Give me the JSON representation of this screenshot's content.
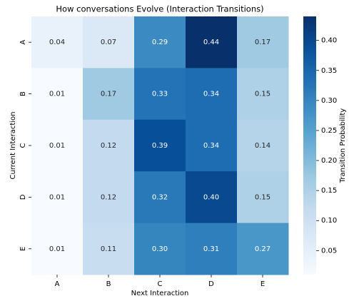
{
  "chart_data": {
    "type": "heatmap",
    "title": "How conversations Evolve (Interaction Transitions)",
    "xlabel": "Next Interaction",
    "ylabel": "Current Interaction",
    "colorbar_label": "Transition Probability",
    "x_categories": [
      "A",
      "B",
      "C",
      "D",
      "E"
    ],
    "y_categories": [
      "A",
      "B",
      "C",
      "D",
      "E"
    ],
    "values": [
      [
        0.04,
        0.07,
        0.29,
        0.44,
        0.17
      ],
      [
        0.01,
        0.17,
        0.33,
        0.34,
        0.15
      ],
      [
        0.01,
        0.12,
        0.39,
        0.34,
        0.14
      ],
      [
        0.01,
        0.12,
        0.32,
        0.4,
        0.15
      ],
      [
        0.01,
        0.11,
        0.3,
        0.31,
        0.27
      ]
    ],
    "value_labels": [
      [
        "0.04",
        "0.07",
        "0.29",
        "0.44",
        "0.17"
      ],
      [
        "0.01",
        "0.17",
        "0.33",
        "0.34",
        "0.15"
      ],
      [
        "0.01",
        "0.12",
        "0.39",
        "0.34",
        "0.14"
      ],
      [
        "0.01",
        "0.12",
        "0.32",
        "0.40",
        "0.15"
      ],
      [
        "0.01",
        "0.11",
        "0.30",
        "0.31",
        "0.27"
      ]
    ],
    "clim": [
      0.01,
      0.44
    ],
    "cticks": [
      {
        "value": 0.05,
        "label": "0.05"
      },
      {
        "value": 0.1,
        "label": "0.10"
      },
      {
        "value": 0.15,
        "label": "0.15"
      },
      {
        "value": 0.2,
        "label": "0.20"
      },
      {
        "value": 0.25,
        "label": "0.25"
      },
      {
        "value": 0.3,
        "label": "0.30"
      },
      {
        "value": 0.35,
        "label": "0.35"
      },
      {
        "value": 0.4,
        "label": "0.40"
      }
    ],
    "colormap": [
      "#f7fbff",
      "#deebf7",
      "#c6dbef",
      "#9ecae1",
      "#6baed6",
      "#4292c6",
      "#2171b5",
      "#08519c",
      "#08306b"
    ]
  }
}
